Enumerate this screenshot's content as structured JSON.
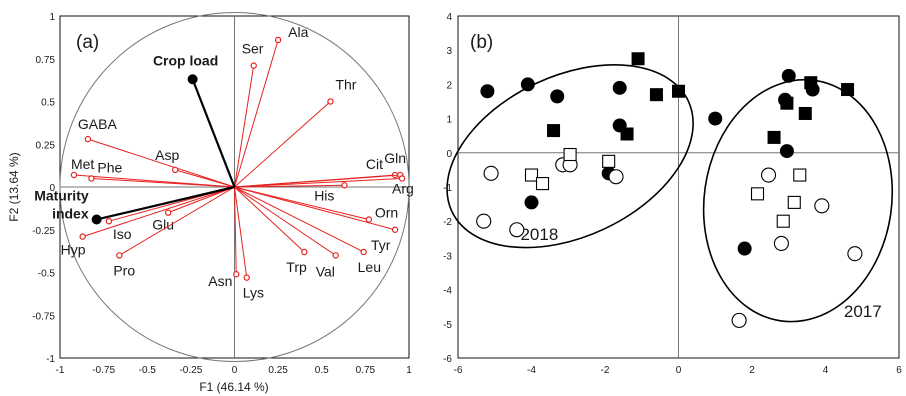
{
  "chart_data": [
    {
      "type": "scatter",
      "panel": "(a)",
      "xlabel": "F1 (46.14 %)",
      "ylabel": "F2 (13.64 %)",
      "xlim": [
        -1,
        1
      ],
      "ylim": [
        -1,
        1
      ],
      "xticks": [
        "-1",
        "-0.75",
        "-0.5",
        "-0.25",
        "0",
        "0.25",
        "0.5",
        "0.75",
        "1"
      ],
      "yticks": [
        "1",
        "0.75",
        "0.5",
        "0.25",
        "0",
        "-0.25",
        "-0.5",
        "-0.75",
        "-1"
      ],
      "colors": {
        "variables": "#e8211d",
        "supplementary": "#000000"
      },
      "variables": [
        {
          "label": "Ala",
          "x": 0.25,
          "y": 0.86
        },
        {
          "label": "Ser",
          "x": 0.11,
          "y": 0.71
        },
        {
          "label": "Thr",
          "x": 0.55,
          "y": 0.5
        },
        {
          "label": "GABA",
          "x": -0.84,
          "y": 0.28
        },
        {
          "label": "Asp",
          "x": -0.34,
          "y": 0.1
        },
        {
          "label": "Met",
          "x": -0.92,
          "y": 0.07
        },
        {
          "label": "Phe",
          "x": -0.82,
          "y": 0.05
        },
        {
          "label": "Cit",
          "x": 0.92,
          "y": 0.07
        },
        {
          "label": "Gln",
          "x": 0.95,
          "y": 0.07
        },
        {
          "label": "Arg",
          "x": 0.96,
          "y": 0.05
        },
        {
          "label": "His",
          "x": 0.63,
          "y": 0.01
        },
        {
          "label": "Orn",
          "x": 0.77,
          "y": -0.19
        },
        {
          "label": "Tyr",
          "x": 0.92,
          "y": -0.25
        },
        {
          "label": "Leu",
          "x": 0.74,
          "y": -0.38
        },
        {
          "label": "Val",
          "x": 0.58,
          "y": -0.4
        },
        {
          "label": "Trp",
          "x": 0.4,
          "y": -0.38
        },
        {
          "label": "Lys",
          "x": 0.07,
          "y": -0.53
        },
        {
          "label": "Asn",
          "x": 0.01,
          "y": -0.51
        },
        {
          "label": "Glu",
          "x": -0.38,
          "y": -0.15
        },
        {
          "label": "Iso",
          "x": -0.72,
          "y": -0.2
        },
        {
          "label": "Hyp",
          "x": -0.87,
          "y": -0.29
        },
        {
          "label": "Pro",
          "x": -0.66,
          "y": -0.4
        }
      ],
      "supplementary": [
        {
          "label": "Crop load",
          "x": -0.24,
          "y": 0.63
        },
        {
          "label": "Maturity index",
          "label_lines": [
            "Maturity",
            "index"
          ],
          "x": -0.79,
          "y": -0.19
        }
      ]
    },
    {
      "type": "scatter",
      "panel": "(b)",
      "xlim": [
        -6,
        6
      ],
      "ylim": [
        -6,
        4
      ],
      "xticks": [
        "-6",
        "-4",
        "-2",
        "0",
        "2",
        "4",
        "6"
      ],
      "yticks": [
        "4",
        "3",
        "2",
        "1",
        "0",
        "-1",
        "-2",
        "-3",
        "-4",
        "-5",
        "-6"
      ],
      "groups": [
        {
          "label": "2018",
          "center": [
            -2.95,
            -0.1
          ],
          "rx": 3.55,
          "ry": 2.35,
          "angle": 25
        },
        {
          "label": "2017",
          "center": [
            3.25,
            -1.4
          ],
          "rx": 2.55,
          "ry": 3.55,
          "angle": -8
        }
      ],
      "series": [
        {
          "marker": "filled-circle",
          "points": [
            [
              -5.2,
              1.8
            ],
            [
              -4.1,
              2.0
            ],
            [
              -3.3,
              1.65
            ],
            [
              -1.6,
              1.9
            ],
            [
              -1.6,
              0.8
            ],
            [
              -1.9,
              -0.6
            ],
            [
              -4.0,
              -1.45
            ],
            [
              1.0,
              1.0
            ],
            [
              3.0,
              2.25
            ],
            [
              2.9,
              1.55
            ],
            [
              3.65,
              1.85
            ],
            [
              2.95,
              0.05
            ],
            [
              1.8,
              -2.8
            ]
          ]
        },
        {
          "marker": "filled-square",
          "points": [
            [
              -1.1,
              2.75
            ],
            [
              -0.6,
              1.7
            ],
            [
              0.0,
              1.8
            ],
            [
              -3.4,
              0.65
            ],
            [
              -1.4,
              0.55
            ],
            [
              4.6,
              1.85
            ],
            [
              3.6,
              2.05
            ],
            [
              2.95,
              1.45
            ],
            [
              2.6,
              0.45
            ],
            [
              3.45,
              1.15
            ]
          ]
        },
        {
          "marker": "open-circle",
          "points": [
            [
              -5.1,
              -0.6
            ],
            [
              -3.15,
              -0.35
            ],
            [
              -2.95,
              -0.35
            ],
            [
              -1.7,
              -0.7
            ],
            [
              -5.3,
              -2.0
            ],
            [
              -4.4,
              -2.25
            ],
            [
              2.45,
              -0.65
            ],
            [
              3.9,
              -1.55
            ],
            [
              2.8,
              -2.65
            ],
            [
              4.8,
              -2.95
            ],
            [
              1.65,
              -4.9
            ]
          ]
        },
        {
          "marker": "open-square",
          "points": [
            [
              -4.0,
              -0.65
            ],
            [
              -3.7,
              -0.9
            ],
            [
              -2.95,
              -0.05
            ],
            [
              -1.9,
              -0.25
            ],
            [
              3.3,
              -0.65
            ],
            [
              2.15,
              -1.2
            ],
            [
              3.15,
              -1.45
            ],
            [
              2.85,
              -2.0
            ]
          ]
        }
      ]
    }
  ]
}
